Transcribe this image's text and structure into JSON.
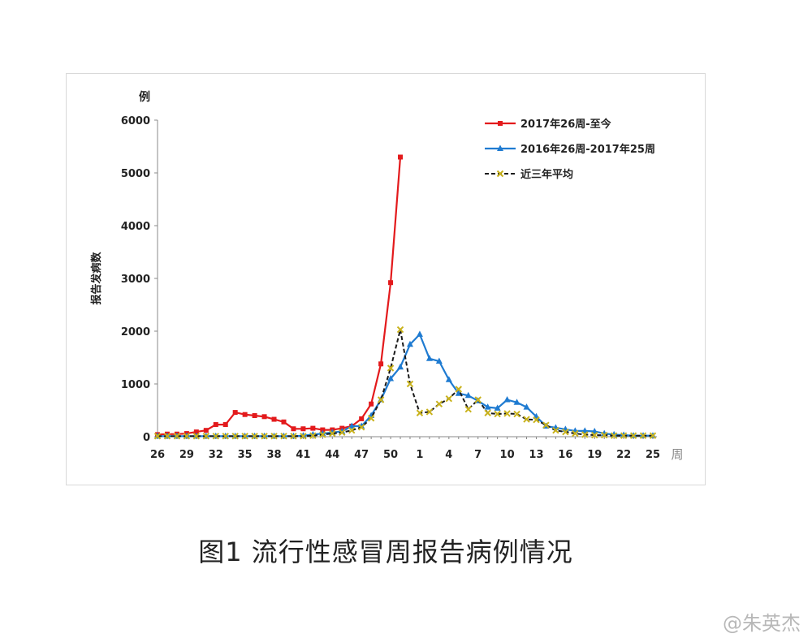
{
  "caption": "图1 流行性感冒周报告病例情况",
  "watermark": "@朱英杰",
  "chart_data": {
    "type": "line",
    "title": "",
    "ylabel": "报告发病数",
    "yunit": "例",
    "xunit": "周",
    "ylim": [
      0,
      6000
    ],
    "yticks": [
      0,
      1000,
      2000,
      3000,
      4000,
      5000,
      6000
    ],
    "grid": false,
    "legend_position": "top-right",
    "weeks": [
      "26",
      "27",
      "28",
      "29",
      "30",
      "31",
      "32",
      "33",
      "34",
      "35",
      "36",
      "37",
      "38",
      "39",
      "40",
      "41",
      "42",
      "43",
      "44",
      "45",
      "46",
      "47",
      "48",
      "49",
      "50",
      "51",
      "52",
      "1",
      "2",
      "3",
      "4",
      "5",
      "6",
      "7",
      "8",
      "9",
      "10",
      "11",
      "12",
      "13",
      "14",
      "15",
      "16",
      "17",
      "18",
      "19",
      "20",
      "21",
      "22",
      "23",
      "24",
      "25"
    ],
    "xticks": [
      "26",
      "29",
      "32",
      "35",
      "38",
      "41",
      "44",
      "47",
      "50",
      "1",
      "4",
      "7",
      "10",
      "13",
      "16",
      "19",
      "22",
      "25"
    ],
    "series": [
      {
        "name": "2017年26周-至今",
        "color": "#e31a1c",
        "marker": "circle",
        "dash": false,
        "values": [
          40,
          50,
          50,
          60,
          90,
          120,
          230,
          230,
          460,
          420,
          400,
          380,
          330,
          280,
          150,
          150,
          160,
          130,
          130,
          160,
          200,
          340,
          620,
          1380,
          2920,
          5300
        ]
      },
      {
        "name": "2016年26周-2017年25周",
        "color": "#1f7bd1",
        "marker": "triangle",
        "dash": false,
        "values": [
          10,
          10,
          10,
          10,
          10,
          10,
          10,
          10,
          10,
          10,
          10,
          10,
          10,
          10,
          10,
          20,
          40,
          60,
          80,
          100,
          200,
          200,
          400,
          700,
          1100,
          1320,
          1750,
          1940,
          1480,
          1430,
          1080,
          820,
          780,
          680,
          560,
          540,
          700,
          650,
          560,
          380,
          200,
          170,
          140,
          110,
          110,
          100,
          60,
          40,
          30,
          20,
          20,
          20
        ]
      },
      {
        "name": "近三年平均",
        "color": "#1a1a1a",
        "marker": "x",
        "marker_color": "#c9b21b",
        "dash": true,
        "values": [
          10,
          10,
          10,
          10,
          10,
          10,
          10,
          10,
          10,
          10,
          10,
          10,
          10,
          10,
          10,
          10,
          20,
          40,
          60,
          80,
          120,
          180,
          350,
          700,
          1300,
          2030,
          1000,
          450,
          470,
          620,
          720,
          900,
          520,
          700,
          450,
          430,
          440,
          430,
          330,
          320,
          220,
          120,
          90,
          60,
          40,
          30,
          30,
          20,
          20,
          20,
          20,
          20
        ]
      }
    ]
  }
}
